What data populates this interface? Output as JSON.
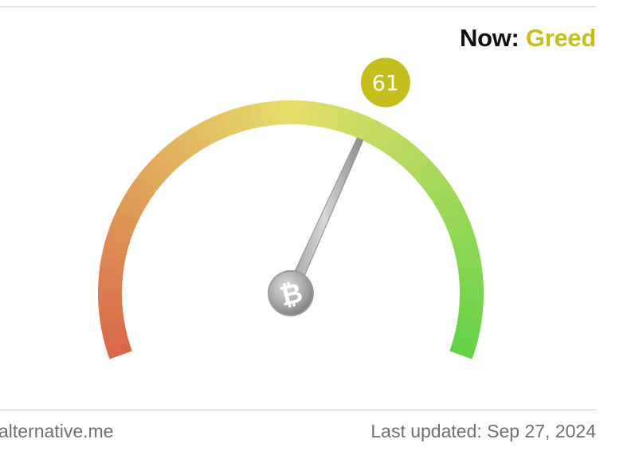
{
  "headline": {
    "prefix": "Now:",
    "status": "Greed"
  },
  "chart_data": {
    "type": "gauge",
    "value": 61,
    "min": 0,
    "max": 100,
    "classification": "Greed",
    "center_icon": "bitcoin-icon"
  },
  "footer": {
    "source": "alternative.me",
    "last_updated": "Last updated: Sep 27, 2024"
  },
  "colors": {
    "status": "#c5bf1d",
    "value_badge": "#c5bf1d",
    "scale_low": "#d9654a",
    "scale_mid": "#e6de6a",
    "scale_high": "#63d348"
  }
}
